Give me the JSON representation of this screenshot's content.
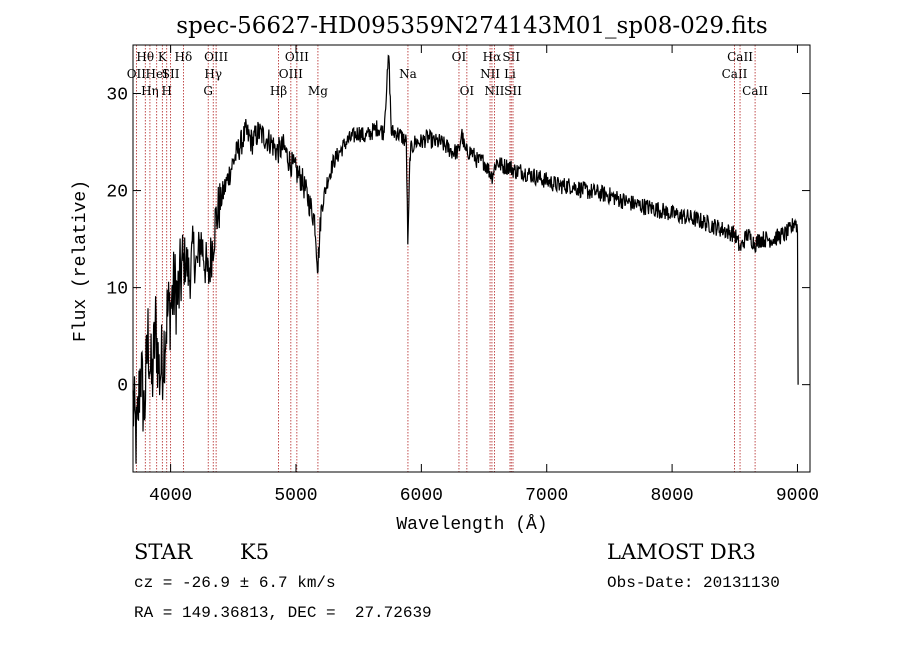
{
  "chart_data": {
    "type": "line",
    "title": "spec-56627-HD095359N274143M01_sp08-029.fits",
    "xlabel": "Wavelength (Å)",
    "ylabel": "Flux (relative)",
    "xlim": [
      3700,
      9100
    ],
    "ylim": [
      -9,
      35
    ],
    "x_ticks": [
      4000,
      5000,
      6000,
      7000,
      8000,
      9000
    ],
    "y_ticks": [
      0,
      10,
      20,
      30
    ],
    "series": [
      {
        "name": "flux",
        "points": [
          [
            3700,
            -2
          ],
          [
            3730,
            -6
          ],
          [
            3760,
            2
          ],
          [
            3790,
            -3
          ],
          [
            3820,
            5
          ],
          [
            3850,
            0
          ],
          [
            3880,
            6
          ],
          [
            3910,
            1
          ],
          [
            3940,
            3
          ],
          [
            3970,
            7
          ],
          [
            4000,
            8
          ],
          [
            4030,
            10
          ],
          [
            4060,
            9
          ],
          [
            4090,
            12
          ],
          [
            4120,
            13
          ],
          [
            4150,
            11
          ],
          [
            4180,
            14
          ],
          [
            4210,
            12
          ],
          [
            4240,
            15
          ],
          [
            4270,
            13
          ],
          [
            4300,
            11
          ],
          [
            4330,
            14
          ],
          [
            4360,
            17
          ],
          [
            4400,
            19
          ],
          [
            4450,
            21
          ],
          [
            4500,
            23
          ],
          [
            4550,
            24.5
          ],
          [
            4600,
            26
          ],
          [
            4650,
            25
          ],
          [
            4700,
            26
          ],
          [
            4750,
            25.5
          ],
          [
            4800,
            25
          ],
          [
            4850,
            24
          ],
          [
            4900,
            24.5
          ],
          [
            4950,
            23
          ],
          [
            5000,
            22
          ],
          [
            5050,
            21
          ],
          [
            5100,
            19
          ],
          [
            5150,
            17
          ],
          [
            5175,
            12
          ],
          [
            5200,
            18
          ],
          [
            5250,
            21
          ],
          [
            5300,
            23
          ],
          [
            5350,
            24
          ],
          [
            5400,
            25
          ],
          [
            5450,
            25.5
          ],
          [
            5500,
            26
          ],
          [
            5550,
            25.5
          ],
          [
            5600,
            26
          ],
          [
            5650,
            26.5
          ],
          [
            5700,
            26
          ],
          [
            5740,
            34
          ],
          [
            5760,
            26
          ],
          [
            5800,
            26
          ],
          [
            5850,
            25.5
          ],
          [
            5880,
            25
          ],
          [
            5893,
            14
          ],
          [
            5910,
            24
          ],
          [
            5950,
            25
          ],
          [
            6000,
            25
          ],
          [
            6050,
            25.5
          ],
          [
            6100,
            25
          ],
          [
            6150,
            25
          ],
          [
            6200,
            24.5
          ],
          [
            6250,
            24
          ],
          [
            6300,
            24
          ],
          [
            6320,
            26
          ],
          [
            6350,
            24
          ],
          [
            6400,
            24
          ],
          [
            6450,
            23
          ],
          [
            6500,
            23
          ],
          [
            6563,
            21.5
          ],
          [
            6600,
            23
          ],
          [
            6650,
            22.5
          ],
          [
            6700,
            22.5
          ],
          [
            6750,
            22
          ],
          [
            6800,
            22
          ],
          [
            6900,
            21.5
          ],
          [
            7000,
            21
          ],
          [
            7100,
            20.5
          ],
          [
            7200,
            20.5
          ],
          [
            7300,
            20
          ],
          [
            7400,
            19.8
          ],
          [
            7500,
            19.5
          ],
          [
            7600,
            19
          ],
          [
            7700,
            18.6
          ],
          [
            7800,
            18.3
          ],
          [
            7900,
            18
          ],
          [
            8000,
            17.6
          ],
          [
            8100,
            17.3
          ],
          [
            8200,
            17
          ],
          [
            8300,
            16.5
          ],
          [
            8400,
            16
          ],
          [
            8500,
            15.5
          ],
          [
            8542,
            14
          ],
          [
            8600,
            15.5
          ],
          [
            8662,
            14.5
          ],
          [
            8700,
            15
          ],
          [
            8800,
            15
          ],
          [
            8900,
            15.5
          ],
          [
            8950,
            16
          ],
          [
            8980,
            17
          ],
          [
            9000,
            16
          ],
          [
            9005,
            0
          ]
        ]
      }
    ],
    "lines": [
      {
        "wavelength": 3727,
        "labels": [
          "OII"
        ],
        "row": 1
      },
      {
        "wavelength": 3798,
        "labels": [
          "Hθ"
        ],
        "row": 0
      },
      {
        "wavelength": 3835,
        "labels": [
          "Hη"
        ],
        "row": 2
      },
      {
        "wavelength": 3889,
        "labels": [
          "HeI"
        ],
        "row": 1
      },
      {
        "wavelength": 3934,
        "labels": [
          "K"
        ],
        "row": 0
      },
      {
        "wavelength": 3969,
        "labels": [
          "H"
        ],
        "row": 2
      },
      {
        "wavelength": 4000,
        "labels": [
          "SII"
        ],
        "row": 1
      },
      {
        "wavelength": 4102,
        "labels": [
          "Hδ"
        ],
        "row": 0
      },
      {
        "wavelength": 4300,
        "labels": [
          "G"
        ],
        "row": 2
      },
      {
        "wavelength": 4340,
        "labels": [
          "Hγ"
        ],
        "row": 1
      },
      {
        "wavelength": 4363,
        "labels": [
          "OIII"
        ],
        "row": 0
      },
      {
        "wavelength": 4861,
        "labels": [
          "Hβ"
        ],
        "row": 2
      },
      {
        "wavelength": 4959,
        "labels": [
          "OIII"
        ],
        "row": 1
      },
      {
        "wavelength": 5007,
        "labels": [
          "OIII"
        ],
        "row": 0
      },
      {
        "wavelength": 5175,
        "labels": [
          "Mg"
        ],
        "row": 2
      },
      {
        "wavelength": 5893,
        "labels": [
          "Na"
        ],
        "row": 1
      },
      {
        "wavelength": 6300,
        "labels": [
          "OI"
        ],
        "row": 0
      },
      {
        "wavelength": 6363,
        "labels": [
          "OI"
        ],
        "row": 2
      },
      {
        "wavelength": 6548,
        "labels": [
          "NII"
        ],
        "row": 1
      },
      {
        "wavelength": 6563,
        "labels": [
          "Hα"
        ],
        "row": 0
      },
      {
        "wavelength": 6583,
        "labels": [
          "NII"
        ],
        "row": 2
      },
      {
        "wavelength": 6707,
        "labels": [
          "Li"
        ],
        "row": 1
      },
      {
        "wavelength": 6717,
        "labels": [
          "SII"
        ],
        "row": 0
      },
      {
        "wavelength": 6731,
        "labels": [
          "SII"
        ],
        "row": 2
      },
      {
        "wavelength": 8498,
        "labels": [
          "CaII"
        ],
        "row": 1
      },
      {
        "wavelength": 8542,
        "labels": [
          "CaII"
        ],
        "row": 0
      },
      {
        "wavelength": 8662,
        "labels": [
          "CaII"
        ],
        "row": 2
      }
    ]
  },
  "info": {
    "object_class": "STAR",
    "subclass": "K5",
    "survey": "LAMOST DR3",
    "redshift_line": "cz = -26.9 ± 6.7 km/s",
    "obs_date_line": "Obs-Date: 20131130",
    "coords_line": "RA = 149.36813, DEC =  27.72639"
  }
}
